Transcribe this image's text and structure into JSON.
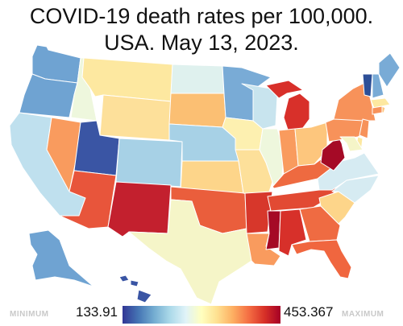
{
  "title_line1": "COVID-19 death rates per 100,000.",
  "title_line2": "USA. May 13, 2023.",
  "legend": {
    "min_word": "MINIMUM",
    "max_word": "MAXIMUM",
    "min_value": "133.91",
    "max_value": "453.367",
    "gradient_colors": [
      "#313695",
      "#4575b4",
      "#74add1",
      "#abd9e9",
      "#e0f3f8",
      "#ffffbf",
      "#fee090",
      "#fdae61",
      "#f46d43",
      "#d73027",
      "#a50026"
    ]
  },
  "colors": {
    "border": "#ffffff",
    "water": "#ffffff"
  },
  "states": [
    {
      "abbr": "WA",
      "color": "#6fa3d2"
    },
    {
      "abbr": "OR",
      "color": "#6fa3d2"
    },
    {
      "abbr": "CA",
      "color": "#bfe0ee"
    },
    {
      "abbr": "NV",
      "color": "#f99b5e"
    },
    {
      "abbr": "ID",
      "color": "#eef7dd"
    },
    {
      "abbr": "MT",
      "color": "#fde8a0"
    },
    {
      "abbr": "WY",
      "color": "#fde09a"
    },
    {
      "abbr": "UT",
      "color": "#3a55a4"
    },
    {
      "abbr": "AZ",
      "color": "#e8553b"
    },
    {
      "abbr": "CO",
      "color": "#a7d1e6"
    },
    {
      "abbr": "NM",
      "color": "#c3202e"
    },
    {
      "abbr": "ND",
      "color": "#dff1ee"
    },
    {
      "abbr": "SD",
      "color": "#fbbf73"
    },
    {
      "abbr": "NE",
      "color": "#a7d1e6"
    },
    {
      "abbr": "KS",
      "color": "#fdd58a"
    },
    {
      "abbr": "OK",
      "color": "#ea5e3c"
    },
    {
      "abbr": "TX",
      "color": "#f5f5c8"
    },
    {
      "abbr": "MN",
      "color": "#79abd6"
    },
    {
      "abbr": "IA",
      "color": "#fdf0b0"
    },
    {
      "abbr": "MO",
      "color": "#fde09a"
    },
    {
      "abbr": "AR",
      "color": "#d7372b"
    },
    {
      "abbr": "LA",
      "color": "#f99b5e"
    },
    {
      "abbr": "WI",
      "color": "#c8e4ee"
    },
    {
      "abbr": "IL",
      "color": "#eef7dd"
    },
    {
      "abbr": "MI",
      "color": "#d8302a"
    },
    {
      "abbr": "IN",
      "color": "#f99b5e"
    },
    {
      "abbr": "OH",
      "color": "#fdc67d"
    },
    {
      "abbr": "KY",
      "color": "#ee6a40"
    },
    {
      "abbr": "TN",
      "color": "#e24a33"
    },
    {
      "abbr": "MS",
      "color": "#a50a26"
    },
    {
      "abbr": "AL",
      "color": "#d7302a"
    },
    {
      "abbr": "GA",
      "color": "#ef6b42"
    },
    {
      "abbr": "FL",
      "color": "#f0663f"
    },
    {
      "abbr": "SC",
      "color": "#fdd58a"
    },
    {
      "abbr": "NC",
      "color": "#d6ebf2"
    },
    {
      "abbr": "VA",
      "color": "#d6ebf2"
    },
    {
      "abbr": "WV",
      "color": "#a50a26"
    },
    {
      "abbr": "PA",
      "color": "#f7925a"
    },
    {
      "abbr": "NY",
      "color": "#f7925a"
    },
    {
      "abbr": "VT",
      "color": "#2d4f97"
    },
    {
      "abbr": "NH",
      "color": "#79abd6"
    },
    {
      "abbr": "ME",
      "color": "#79abd6"
    },
    {
      "abbr": "MA",
      "color": "#fde8a0"
    },
    {
      "abbr": "CT",
      "color": "#f7925a"
    },
    {
      "abbr": "RI",
      "color": "#fdc67d"
    },
    {
      "abbr": "NJ",
      "color": "#f7925a"
    },
    {
      "abbr": "DE",
      "color": "#fde8a0"
    },
    {
      "abbr": "MD",
      "color": "#f5f5c8"
    },
    {
      "abbr": "AK",
      "color": "#6fa3d2"
    },
    {
      "abbr": "HI",
      "color": "#3a55a4"
    }
  ]
}
